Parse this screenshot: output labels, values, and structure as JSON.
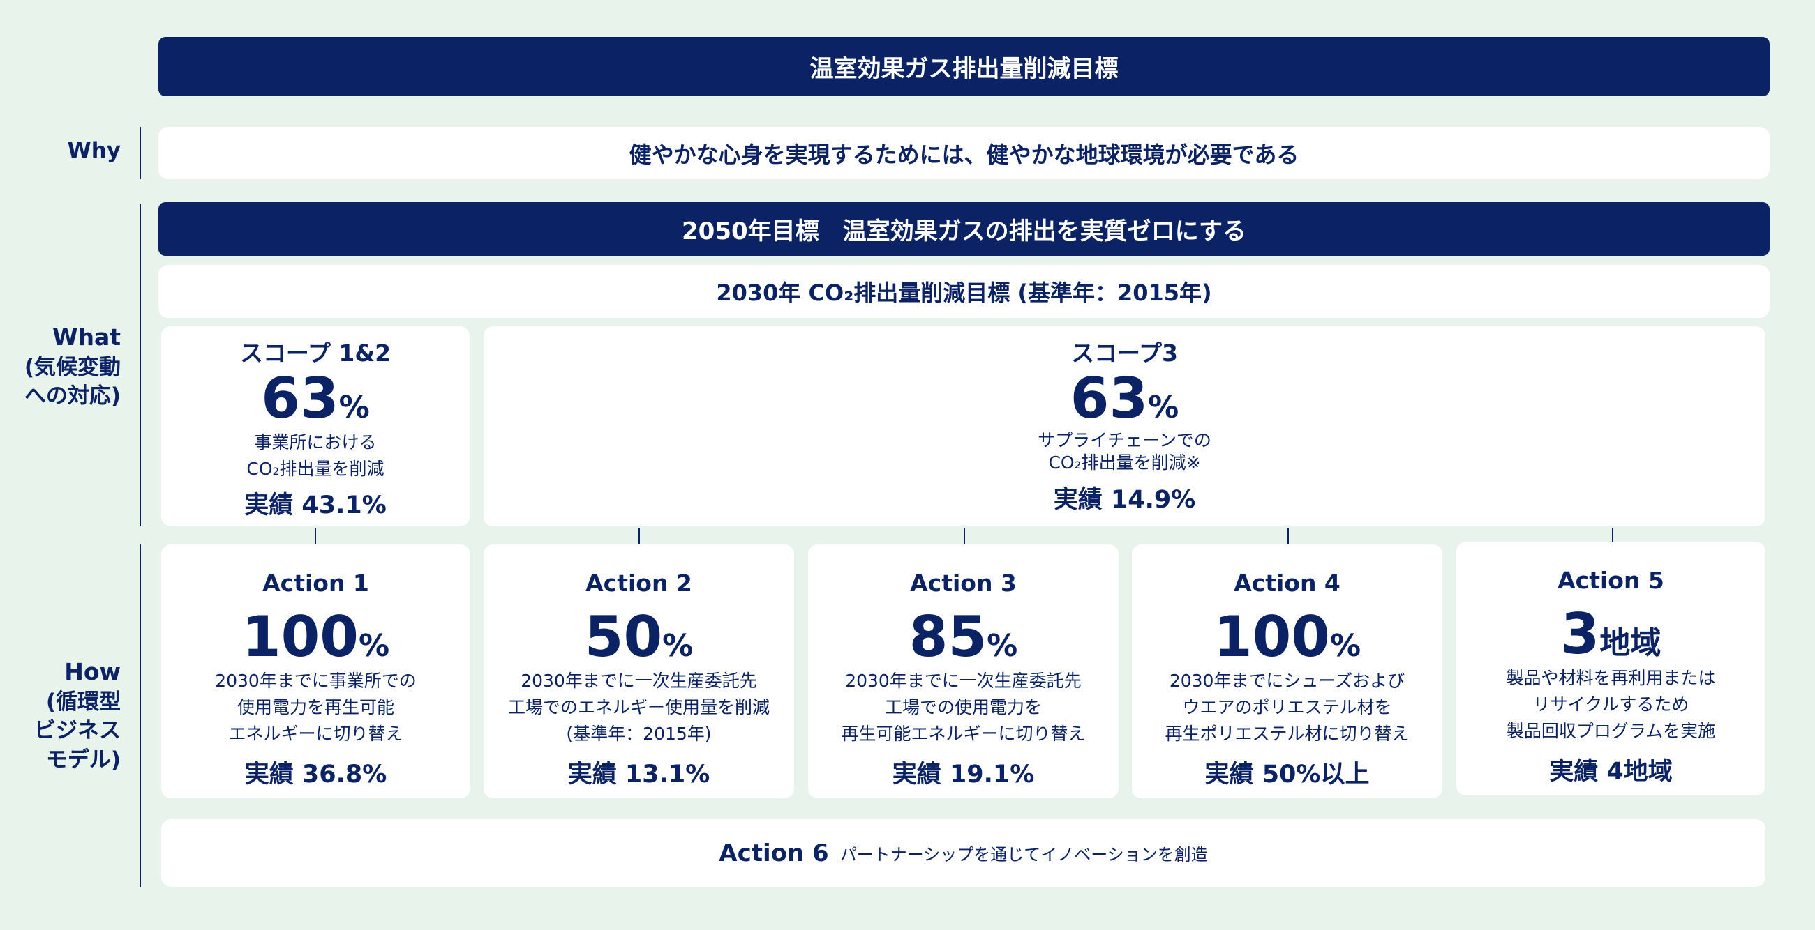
{
  "title": "温室効果ガス排出量削減目標",
  "labels": {
    "why": "Why",
    "what": "What",
    "what_sub1": "(気候変動",
    "what_sub2": "への対応)",
    "how": "How",
    "how_sub1": "(循環型",
    "how_sub2": "ビジネス",
    "how_sub3": "モデル)"
  },
  "why_text": "健やかな心身を実現するためには、健やかな地球環境が必要である",
  "goal_2050": "2050年目標　温室効果ガスの排出を実質ゼロにする",
  "goal_2030": "2030年 CO₂排出量削減目標 (基準年：2015年)",
  "scopes": [
    {
      "title": "スコープ 1&2",
      "value": "63",
      "unit": "%",
      "desc1": "事業所における",
      "desc2": "CO₂排出量を削減",
      "result": "実績 43.1%"
    },
    {
      "title": "スコープ3",
      "value": "63",
      "unit": "%",
      "desc1": "サプライチェーンでの",
      "desc2": "CO₂排出量を削減※",
      "result": "実績 14.9%"
    }
  ],
  "actions": [
    {
      "title": "Action 1",
      "value": "100",
      "unit": "%",
      "desc": [
        "2030年までに事業所での",
        "使用電力を再生可能",
        "エネルギーに切り替え"
      ],
      "result": "実績 36.8%"
    },
    {
      "title": "Action 2",
      "value": "50",
      "unit": "%",
      "desc": [
        "2030年までに一次生産委託先",
        "工場でのエネルギー使用量を削減",
        "(基準年：2015年)"
      ],
      "result": "実績 13.1%"
    },
    {
      "title": "Action 3",
      "value": "85",
      "unit": "%",
      "desc": [
        "2030年までに一次生産委託先",
        "工場での使用電力を",
        "再生可能エネルギーに切り替え"
      ],
      "result": "実績 19.1%"
    },
    {
      "title": "Action 4",
      "value": "100",
      "unit": "%",
      "desc": [
        "2030年までにシューズおよび",
        "ウエアのポリエステル材を",
        "再生ポリエステル材に切り替え"
      ],
      "result": "実績 50%以上"
    },
    {
      "title": "Action 5",
      "value": "3",
      "unit": "地域",
      "desc": [
        "製品や材料を再利用または",
        "リサイクルするため",
        "製品回収プログラムを実施"
      ],
      "result": "実績 4地域"
    }
  ],
  "action6": {
    "title": "Action 6",
    "desc": "パートナーシップを通じてイノベーションを創造"
  }
}
